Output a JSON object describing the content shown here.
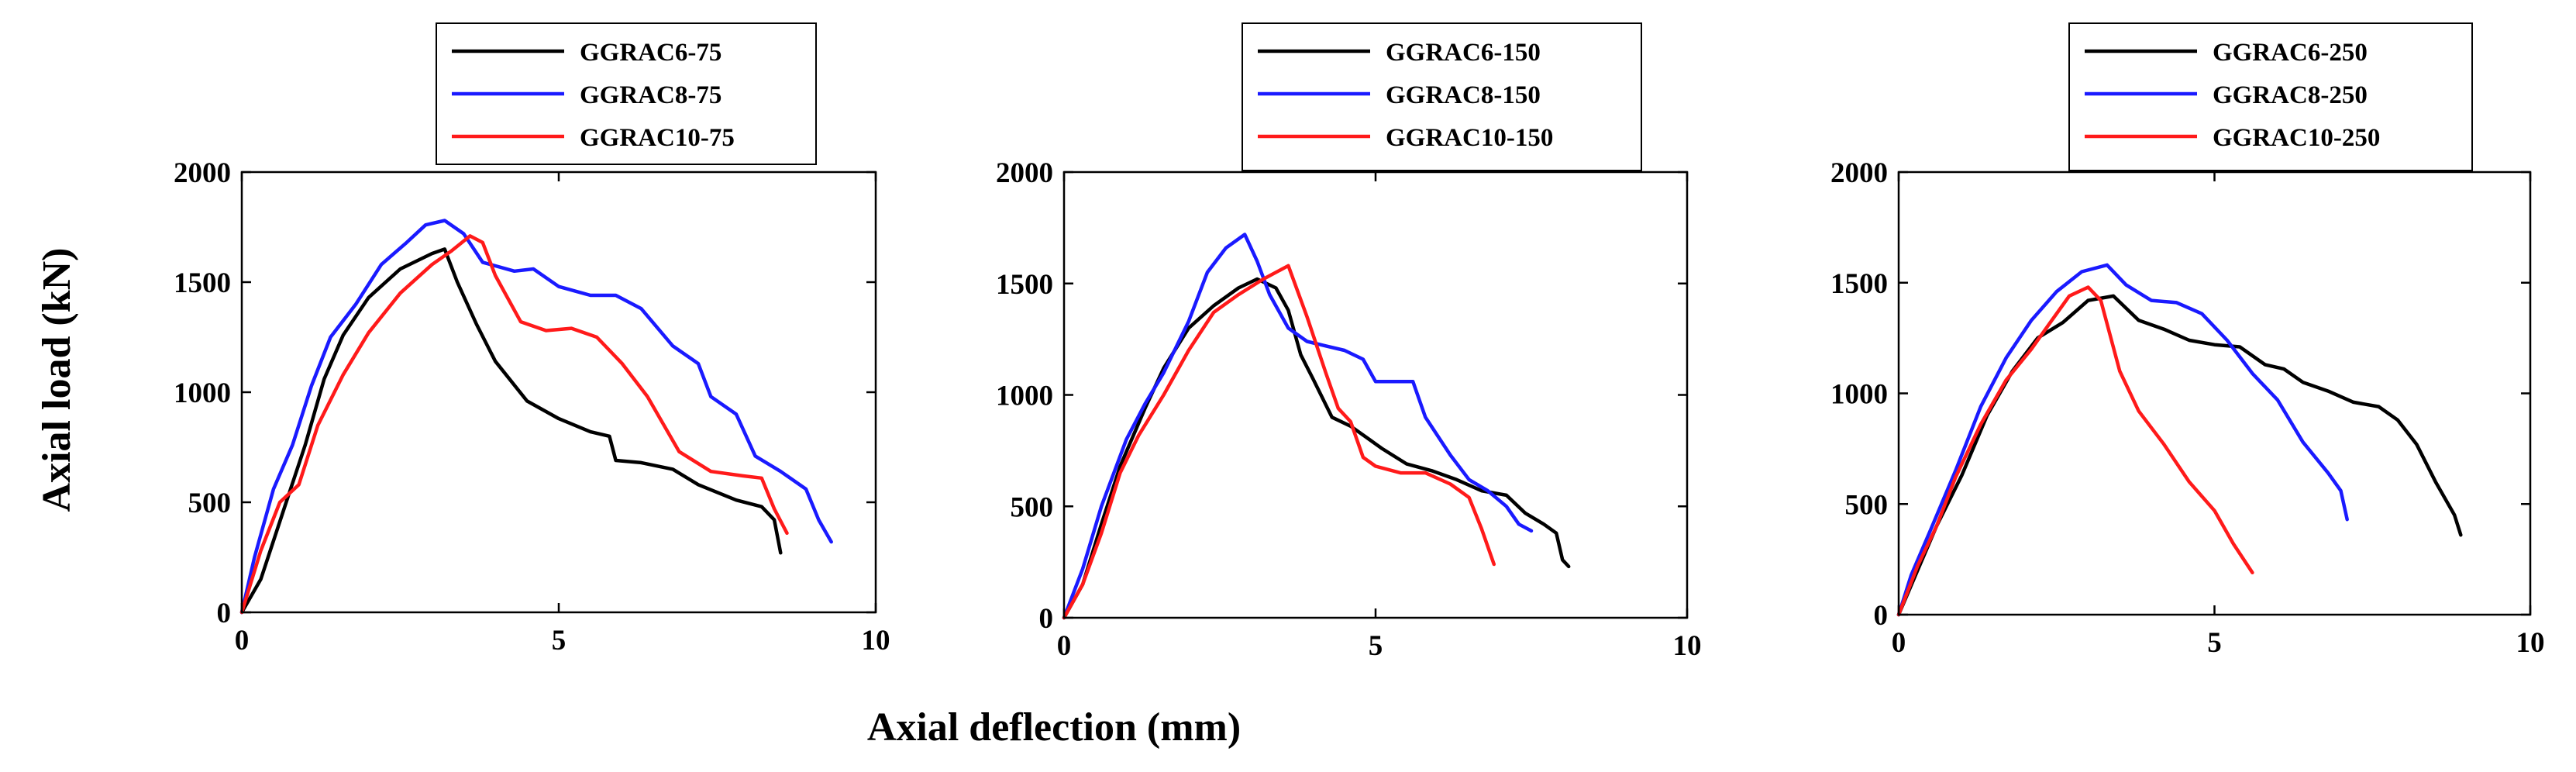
{
  "figure": {
    "xlabel": "Axial deflection (mm)",
    "ylabel": "Axial load (kN)"
  },
  "colors": {
    "d6": "#000000",
    "d8": "#1a1aff",
    "d10": "#ff1a1a"
  },
  "chart_data": [
    {
      "type": "line",
      "title": "",
      "xlabel": "Axial deflection (mm)",
      "ylabel": "Axial load (kN)",
      "xlim": [
        0,
        10
      ],
      "ylim": [
        0,
        2000
      ],
      "xticks": [
        "0",
        "5",
        "10"
      ],
      "yticks": [
        "0",
        "500",
        "1000",
        "1500",
        "2000"
      ],
      "legend_position": "top",
      "series": [
        {
          "name": "GGRAC6-75",
          "color": "#000000",
          "points": [
            [
              0,
              0
            ],
            [
              0.3,
              150
            ],
            [
              0.7,
              500
            ],
            [
              1.0,
              760
            ],
            [
              1.3,
              1060
            ],
            [
              1.6,
              1260
            ],
            [
              2.0,
              1430
            ],
            [
              2.5,
              1560
            ],
            [
              3.0,
              1630
            ],
            [
              3.2,
              1650
            ],
            [
              3.4,
              1500
            ],
            [
              3.7,
              1310
            ],
            [
              4.0,
              1140
            ],
            [
              4.5,
              960
            ],
            [
              5.0,
              880
            ],
            [
              5.5,
              820
            ],
            [
              5.8,
              800
            ],
            [
              5.9,
              690
            ],
            [
              6.3,
              680
            ],
            [
              6.8,
              650
            ],
            [
              7.2,
              580
            ],
            [
              7.8,
              510
            ],
            [
              8.2,
              480
            ],
            [
              8.4,
              420
            ],
            [
              8.5,
              270
            ]
          ]
        },
        {
          "name": "GGRAC8-75",
          "color": "#1a1aff",
          "points": [
            [
              0,
              0
            ],
            [
              0.2,
              250
            ],
            [
              0.5,
              560
            ],
            [
              0.8,
              760
            ],
            [
              1.1,
              1030
            ],
            [
              1.4,
              1250
            ],
            [
              1.8,
              1400
            ],
            [
              2.2,
              1580
            ],
            [
              2.6,
              1680
            ],
            [
              2.9,
              1760
            ],
            [
              3.2,
              1780
            ],
            [
              3.5,
              1720
            ],
            [
              3.8,
              1590
            ],
            [
              4.3,
              1550
            ],
            [
              4.6,
              1560
            ],
            [
              5.0,
              1480
            ],
            [
              5.5,
              1440
            ],
            [
              5.9,
              1440
            ],
            [
              6.3,
              1380
            ],
            [
              6.8,
              1210
            ],
            [
              7.2,
              1130
            ],
            [
              7.4,
              980
            ],
            [
              7.8,
              900
            ],
            [
              8.1,
              710
            ],
            [
              8.5,
              640
            ],
            [
              8.9,
              560
            ],
            [
              9.1,
              420
            ],
            [
              9.3,
              320
            ]
          ]
        },
        {
          "name": "GGRAC10-75",
          "color": "#ff1a1a",
          "points": [
            [
              0,
              0
            ],
            [
              0.3,
              280
            ],
            [
              0.6,
              500
            ],
            [
              0.9,
              580
            ],
            [
              1.2,
              850
            ],
            [
              1.6,
              1080
            ],
            [
              2.0,
              1270
            ],
            [
              2.5,
              1450
            ],
            [
              3.0,
              1580
            ],
            [
              3.3,
              1640
            ],
            [
              3.6,
              1710
            ],
            [
              3.8,
              1680
            ],
            [
              4.0,
              1530
            ],
            [
              4.4,
              1320
            ],
            [
              4.8,
              1280
            ],
            [
              5.2,
              1290
            ],
            [
              5.6,
              1250
            ],
            [
              6.0,
              1130
            ],
            [
              6.4,
              980
            ],
            [
              6.9,
              730
            ],
            [
              7.4,
              640
            ],
            [
              7.9,
              620
            ],
            [
              8.2,
              610
            ],
            [
              8.4,
              470
            ],
            [
              8.6,
              360
            ]
          ]
        }
      ]
    },
    {
      "type": "line",
      "title": "",
      "xlabel": "Axial deflection (mm)",
      "ylabel": "Axial load (kN)",
      "xlim": [
        0,
        10
      ],
      "ylim": [
        0,
        2000
      ],
      "xticks": [
        "0",
        "5",
        "10"
      ],
      "yticks": [
        "0",
        "500",
        "1000",
        "1500",
        "2000"
      ],
      "legend_position": "top",
      "series": [
        {
          "name": "GGRAC6-150",
          "color": "#000000",
          "points": [
            [
              0,
              0
            ],
            [
              0.3,
              150
            ],
            [
              0.6,
              420
            ],
            [
              0.9,
              680
            ],
            [
              1.3,
              940
            ],
            [
              1.6,
              1120
            ],
            [
              2.0,
              1300
            ],
            [
              2.4,
              1400
            ],
            [
              2.8,
              1480
            ],
            [
              3.1,
              1520
            ],
            [
              3.4,
              1480
            ],
            [
              3.6,
              1380
            ],
            [
              3.8,
              1180
            ],
            [
              4.0,
              1070
            ],
            [
              4.3,
              900
            ],
            [
              4.6,
              860
            ],
            [
              4.9,
              800
            ],
            [
              5.1,
              760
            ],
            [
              5.5,
              690
            ],
            [
              5.9,
              660
            ],
            [
              6.3,
              620
            ],
            [
              6.7,
              570
            ],
            [
              7.1,
              550
            ],
            [
              7.4,
              470
            ],
            [
              7.7,
              420
            ],
            [
              7.9,
              380
            ],
            [
              8.0,
              260
            ],
            [
              8.1,
              230
            ]
          ]
        },
        {
          "name": "GGRAC8-150",
          "color": "#1a1aff",
          "points": [
            [
              0,
              0
            ],
            [
              0.3,
              220
            ],
            [
              0.6,
              500
            ],
            [
              1.0,
              800
            ],
            [
              1.3,
              960
            ],
            [
              1.6,
              1100
            ],
            [
              2.0,
              1330
            ],
            [
              2.3,
              1550
            ],
            [
              2.6,
              1660
            ],
            [
              2.9,
              1720
            ],
            [
              3.1,
              1600
            ],
            [
              3.3,
              1450
            ],
            [
              3.6,
              1300
            ],
            [
              3.9,
              1240
            ],
            [
              4.2,
              1220
            ],
            [
              4.5,
              1200
            ],
            [
              4.8,
              1160
            ],
            [
              5.0,
              1060
            ],
            [
              5.3,
              1060
            ],
            [
              5.6,
              1060
            ],
            [
              5.8,
              900
            ],
            [
              6.2,
              730
            ],
            [
              6.5,
              620
            ],
            [
              6.8,
              570
            ],
            [
              7.1,
              500
            ],
            [
              7.3,
              420
            ],
            [
              7.5,
              390
            ]
          ]
        },
        {
          "name": "GGRAC10-150",
          "color": "#ff1a1a",
          "points": [
            [
              0,
              0
            ],
            [
              0.3,
              150
            ],
            [
              0.6,
              380
            ],
            [
              0.9,
              650
            ],
            [
              1.2,
              820
            ],
            [
              1.6,
              1000
            ],
            [
              2.0,
              1200
            ],
            [
              2.4,
              1370
            ],
            [
              2.8,
              1450
            ],
            [
              3.2,
              1520
            ],
            [
              3.6,
              1580
            ],
            [
              3.9,
              1350
            ],
            [
              4.2,
              1100
            ],
            [
              4.4,
              940
            ],
            [
              4.6,
              880
            ],
            [
              4.8,
              720
            ],
            [
              5.0,
              680
            ],
            [
              5.4,
              650
            ],
            [
              5.8,
              650
            ],
            [
              6.2,
              600
            ],
            [
              6.5,
              540
            ],
            [
              6.7,
              400
            ],
            [
              6.9,
              240
            ]
          ]
        }
      ]
    },
    {
      "type": "line",
      "title": "",
      "xlabel": "Axial deflection (mm)",
      "ylabel": "Axial load (kN)",
      "xlim": [
        0,
        10
      ],
      "ylim": [
        0,
        2000
      ],
      "xticks": [
        "0",
        "5",
        "10"
      ],
      "yticks": [
        "0",
        "500",
        "1000",
        "1500",
        "2000"
      ],
      "legend_position": "top",
      "series": [
        {
          "name": "GGRAC6-250",
          "color": "#000000",
          "points": [
            [
              0,
              0
            ],
            [
              0.3,
              200
            ],
            [
              0.6,
              400
            ],
            [
              1.0,
              630
            ],
            [
              1.4,
              900
            ],
            [
              1.8,
              1100
            ],
            [
              2.2,
              1250
            ],
            [
              2.6,
              1320
            ],
            [
              3.0,
              1420
            ],
            [
              3.4,
              1440
            ],
            [
              3.8,
              1330
            ],
            [
              4.2,
              1290
            ],
            [
              4.6,
              1240
            ],
            [
              5.0,
              1220
            ],
            [
              5.4,
              1210
            ],
            [
              5.8,
              1130
            ],
            [
              6.1,
              1110
            ],
            [
              6.4,
              1050
            ],
            [
              6.8,
              1010
            ],
            [
              7.2,
              960
            ],
            [
              7.6,
              940
            ],
            [
              7.9,
              880
            ],
            [
              8.2,
              770
            ],
            [
              8.5,
              600
            ],
            [
              8.8,
              450
            ],
            [
              8.9,
              360
            ]
          ]
        },
        {
          "name": "GGRAC8-250",
          "color": "#1a1aff",
          "points": [
            [
              0,
              0
            ],
            [
              0.2,
              180
            ],
            [
              0.5,
              380
            ],
            [
              0.9,
              650
            ],
            [
              1.3,
              940
            ],
            [
              1.7,
              1160
            ],
            [
              2.1,
              1330
            ],
            [
              2.5,
              1460
            ],
            [
              2.9,
              1550
            ],
            [
              3.3,
              1580
            ],
            [
              3.6,
              1490
            ],
            [
              4.0,
              1420
            ],
            [
              4.4,
              1410
            ],
            [
              4.8,
              1360
            ],
            [
              5.2,
              1240
            ],
            [
              5.6,
              1090
            ],
            [
              6.0,
              970
            ],
            [
              6.4,
              780
            ],
            [
              6.8,
              640
            ],
            [
              7.0,
              560
            ],
            [
              7.1,
              430
            ]
          ]
        },
        {
          "name": "GGRAC10-250",
          "color": "#ff1a1a",
          "points": [
            [
              0,
              0
            ],
            [
              0.3,
              220
            ],
            [
              0.6,
              400
            ],
            [
              0.9,
              620
            ],
            [
              1.3,
              860
            ],
            [
              1.7,
              1060
            ],
            [
              2.1,
              1200
            ],
            [
              2.4,
              1320
            ],
            [
              2.7,
              1440
            ],
            [
              3.0,
              1480
            ],
            [
              3.2,
              1420
            ],
            [
              3.5,
              1100
            ],
            [
              3.8,
              920
            ],
            [
              4.2,
              770
            ],
            [
              4.6,
              600
            ],
            [
              5.0,
              470
            ],
            [
              5.3,
              320
            ],
            [
              5.6,
              190
            ]
          ]
        }
      ]
    }
  ]
}
